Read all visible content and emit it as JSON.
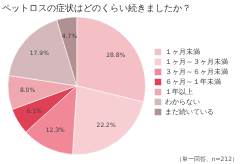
{
  "chart_data": {
    "type": "pie",
    "title": "ペットロスの症状はどのくらい続きましたか？",
    "categories": [
      "１ヶ月未満",
      "１ヶ月～３ヶ月未満",
      "３ヶ月～６ヶ月未満",
      "６ヶ月～１年未満",
      "１年以上",
      "わからない",
      "まだ続いている"
    ],
    "values": [
      28.8,
      22.2,
      12.3,
      6.1,
      8.0,
      17.9,
      4.7
    ],
    "value_labels": [
      "28.8%",
      "22.2%",
      "12.3%",
      "6.1%",
      "8.0%",
      "17.9%",
      "4.7%"
    ],
    "colors": [
      "#f5c0c5",
      "#f7cfd2",
      "#f08898",
      "#e04055",
      "#f0a8b0",
      "#d4b8bc",
      "#b09090"
    ],
    "data_labels": true,
    "legend": "right",
    "annotations": [
      "（単一回答、n=212）"
    ]
  }
}
